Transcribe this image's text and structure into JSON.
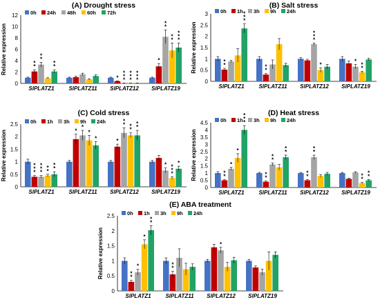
{
  "colors": {
    "series": [
      "#4472c4",
      "#c00000",
      "#a5a5a5",
      "#ffc000",
      "#21a366"
    ],
    "highlight": "#ff66cc",
    "axis": "#000000",
    "grid": "#d9d9d9"
  },
  "chart_data": [
    {
      "type": "bar",
      "title": "(A) Drought stress",
      "ylabel": "Relative expression",
      "ylim": [
        0,
        12
      ],
      "yticks": [
        "0",
        "2",
        "4",
        "6",
        "8",
        "10",
        "12"
      ],
      "legend": "top-left",
      "categories": [
        "SlPLATZ1",
        "SlPLATZ11",
        "SlPLATZ12",
        "SlPLATZ19"
      ],
      "series": [
        {
          "name": "0h",
          "values": [
            1.0,
            1.0,
            1.0,
            1.0
          ],
          "err": [
            0.1,
            0.1,
            0.1,
            0.1
          ],
          "sig": [
            "",
            "",
            "",
            ""
          ]
        },
        {
          "name": "24h",
          "values": [
            2.1,
            1.1,
            0.4,
            3.0
          ],
          "err": [
            0.3,
            0.15,
            0.05,
            0.5
          ],
          "sig": [
            "**",
            "",
            "*",
            "*"
          ]
        },
        {
          "name": "48h",
          "values": [
            3.3,
            1.6,
            0.05,
            8.2
          ],
          "err": [
            0.4,
            0.2,
            0.02,
            1.2
          ],
          "sig": [
            "**",
            "",
            "***",
            "**"
          ]
        },
        {
          "name": "60h",
          "values": [
            0.9,
            0.7,
            0.05,
            5.8
          ],
          "err": [
            0.1,
            0.1,
            0.02,
            1.3
          ],
          "sig": [
            "",
            "",
            "***",
            "**"
          ]
        },
        {
          "name": "72h",
          "values": [
            2.1,
            1.3,
            0.05,
            6.3
          ],
          "err": [
            0.3,
            0.2,
            0.02,
            0.8
          ],
          "sig": [
            "**",
            "",
            "***",
            "***"
          ]
        }
      ]
    },
    {
      "type": "bar",
      "title": "(B) Salt stress",
      "ylabel": "Relative expression",
      "ylim": [
        0,
        3
      ],
      "yticks": [
        "0",
        "0.5",
        "1",
        "1.5",
        "2",
        "2.5",
        "3"
      ],
      "legend": "top-left",
      "categories": [
        "SlPLATZ1",
        "SlPLATZ11",
        "SlPLATZ12",
        "SlPLATZ19"
      ],
      "series": [
        {
          "name": "0h",
          "values": [
            1.0,
            1.0,
            1.0,
            1.0
          ],
          "err": [
            0.1,
            0.1,
            0.05,
            0.1
          ],
          "sig": [
            "",
            "",
            "",
            ""
          ]
        },
        {
          "name": "1h",
          "values": [
            0.52,
            0.3,
            0.93,
            0.8
          ],
          "err": [
            0.06,
            0.05,
            0.05,
            0.1
          ],
          "sig": [
            "**",
            "**",
            "",
            ""
          ]
        },
        {
          "name": "3h",
          "values": [
            0.88,
            0.75,
            1.65,
            0.65
          ],
          "err": [
            0.05,
            0.2,
            0.05,
            0.1
          ],
          "sig": [
            "",
            "",
            "***",
            "*"
          ]
        },
        {
          "name": "9h",
          "values": [
            1.15,
            1.65,
            0.5,
            0.4
          ],
          "err": [
            0.3,
            0.25,
            0.1,
            0.05
          ],
          "sig": [
            "",
            "",
            "*",
            "**"
          ]
        },
        {
          "name": "24h",
          "values": [
            2.35,
            0.72,
            0.65,
            0.97
          ],
          "err": [
            0.2,
            0.08,
            0.1,
            0.05
          ],
          "sig": [
            "***",
            "",
            "",
            ""
          ]
        }
      ]
    },
    {
      "type": "bar",
      "title": "(C) Cold stress",
      "ylabel": "Relative expression",
      "ylim": [
        0,
        2.5
      ],
      "yticks": [
        "0",
        "0.5",
        "1",
        "1.5",
        "2",
        "2.5"
      ],
      "legend": "top-left",
      "categories": [
        "SlPLATZ1",
        "SlPLATZ11",
        "SlPLATZ12",
        "SlPLATZ19"
      ],
      "series": [
        {
          "name": "0h",
          "values": [
            1.0,
            1.0,
            1.0,
            1.0
          ],
          "err": [
            0.1,
            0.05,
            0.05,
            0.05
          ],
          "sig": [
            "",
            "",
            "",
            ""
          ]
        },
        {
          "name": "1h",
          "values": [
            0.4,
            1.9,
            1.6,
            1.15
          ],
          "err": [
            0.05,
            0.2,
            0.1,
            0.1
          ],
          "sig": [
            "***",
            "*",
            "*",
            ""
          ]
        },
        {
          "name": "3h",
          "values": [
            0.4,
            2.05,
            2.15,
            0.65
          ],
          "err": [
            0.05,
            0.2,
            0.2,
            0.1
          ],
          "sig": [
            "***",
            "*",
            "**",
            "*"
          ]
        },
        {
          "name": "9h",
          "values": [
            0.45,
            1.85,
            2.05,
            0.35
          ],
          "err": [
            0.05,
            0.2,
            0.1,
            0.05
          ],
          "sig": [
            "**",
            "*",
            "**",
            "***"
          ]
        },
        {
          "name": "24h",
          "values": [
            0.5,
            1.65,
            2.05,
            0.72
          ],
          "err": [
            0.1,
            0.15,
            0.2,
            0.1
          ],
          "sig": [
            "**",
            "*",
            "**",
            "*"
          ]
        }
      ]
    },
    {
      "type": "bar",
      "title": "(D) Heat stress",
      "ylabel": "Relative expression",
      "ylim": [
        0,
        4.5
      ],
      "yticks": [
        "0",
        "0.5",
        "1",
        "1.5",
        "2",
        "2.5",
        "3",
        "3.5",
        "4",
        "4.5"
      ],
      "legend": "top-left",
      "categories": [
        "SlPLATZ1",
        "SlPLATZ11",
        "SlPLATZ12",
        "SlPLATZ19"
      ],
      "series": [
        {
          "name": "0h",
          "values": [
            1.0,
            1.0,
            1.0,
            1.0
          ],
          "err": [
            0.1,
            0.05,
            0.05,
            0.05
          ],
          "sig": [
            "",
            "",
            "",
            ""
          ]
        },
        {
          "name": "1h",
          "values": [
            0.5,
            0.4,
            0.5,
            0.6
          ],
          "err": [
            0.05,
            0.05,
            0.05,
            0.05
          ],
          "sig": [
            "**",
            "**",
            "**",
            ""
          ]
        },
        {
          "name": "3h",
          "values": [
            1.3,
            1.6,
            2.1,
            1.05
          ],
          "err": [
            0.1,
            0.1,
            0.15,
            0.05
          ],
          "sig": [
            "*",
            "**",
            "**",
            ""
          ]
        },
        {
          "name": "9h",
          "values": [
            2.05,
            1.4,
            0.8,
            0.3
          ],
          "err": [
            0.3,
            0.2,
            0.1,
            0.05
          ],
          "sig": [
            "*",
            "",
            "",
            "**"
          ]
        },
        {
          "name": "24h",
          "values": [
            4.0,
            2.1,
            0.95,
            0.5
          ],
          "err": [
            0.3,
            0.15,
            0.1,
            0.05
          ],
          "sig": [
            "***",
            "**",
            "",
            "**"
          ]
        }
      ]
    },
    {
      "type": "bar",
      "title": "(E) ABA treatment",
      "ylabel": "Relative expression",
      "ylim": [
        0,
        2.5
      ],
      "yticks": [
        "0",
        "0.5",
        "1",
        "1.5",
        "2",
        "2.5"
      ],
      "legend": "top-left",
      "categories": [
        "SlPLATZ1",
        "SlPLATZ11",
        "SlPLATZ12",
        "SlPLATZ19"
      ],
      "series": [
        {
          "name": "0h",
          "values": [
            1.0,
            1.0,
            1.0,
            1.0
          ],
          "err": [
            0.1,
            0.1,
            0.05,
            0.05
          ],
          "sig": [
            "",
            "",
            "",
            ""
          ]
        },
        {
          "name": "1h",
          "values": [
            0.3,
            0.55,
            1.45,
            0.78
          ],
          "err": [
            0.05,
            0.1,
            0.1,
            0.05
          ],
          "sig": [
            "**",
            "**",
            "",
            ""
          ]
        },
        {
          "name": "3h",
          "values": [
            0.62,
            1.1,
            1.35,
            0.62
          ],
          "err": [
            0.1,
            0.3,
            0.1,
            0.1
          ],
          "sig": [
            "*",
            "",
            "*",
            ""
          ]
        },
        {
          "name": "9h",
          "values": [
            1.55,
            0.72,
            0.8,
            1.0
          ],
          "err": [
            0.15,
            0.2,
            0.15,
            0.3
          ],
          "sig": [
            "*",
            "",
            "",
            ""
          ]
        },
        {
          "name": "24h",
          "values": [
            2.02,
            0.8,
            1.02,
            1.2
          ],
          "err": [
            0.15,
            0.1,
            0.1,
            0.1
          ],
          "sig": [
            "**",
            "",
            "",
            ""
          ]
        }
      ]
    }
  ]
}
